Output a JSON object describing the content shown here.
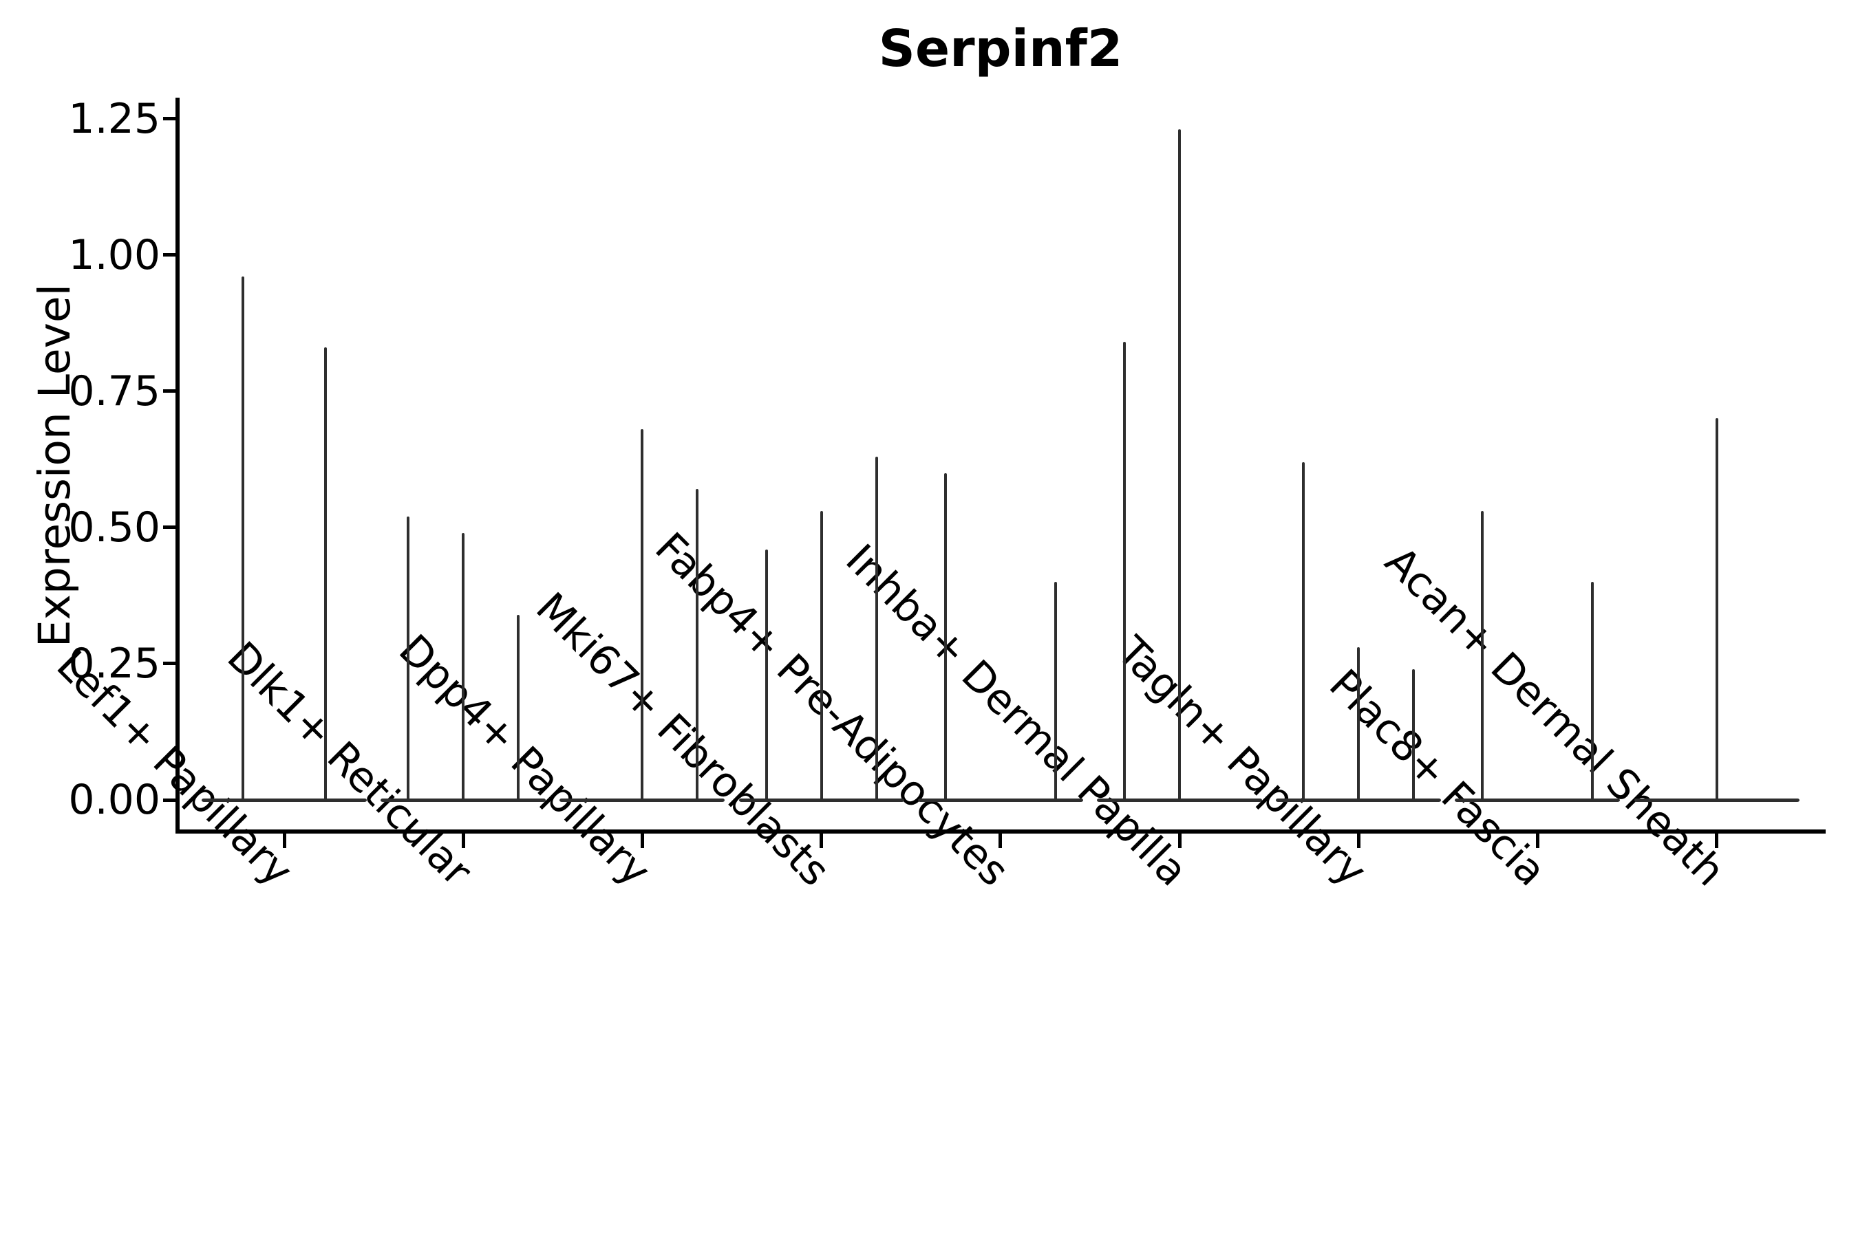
{
  "title": "Serpinf2",
  "ylabel": "Expression Level",
  "colors": {
    "violin": "#2e2e2e",
    "axis": "#000000",
    "text": "#000000",
    "background": "#ffffff"
  },
  "chart_data": {
    "type": "violin",
    "title": "Serpinf2",
    "ylabel": "Expression Level",
    "xlabel": "",
    "ylim": [
      -0.06,
      1.29
    ],
    "yticks": [
      0.0,
      0.25,
      0.5,
      0.75,
      1.0,
      1.25
    ],
    "ytick_labels": [
      "0.00",
      "0.25",
      "0.50",
      "0.75",
      "1.00",
      "1.25"
    ],
    "grid": false,
    "legend": false,
    "x_tick_rotation": 45,
    "categories": [
      "Lef1+ Papillary",
      "Dlk1+ Reticular",
      "Dpp4+ Papillary",
      "Mki67+ Fibroblasts",
      "Fabp4+ Pre-Adipocytes",
      "Inhba+ Dermal Papilla",
      "Tagln+ Papillary",
      "Plac8+ Fascia",
      "Acan+ Dermal Sheath"
    ],
    "groups": [
      {
        "category": "Lef1+ Papillary",
        "violins": 2,
        "spikes": [
          {
            "slot": 0,
            "peak": 0.96
          },
          {
            "slot": 1,
            "peak": 0.83
          }
        ]
      },
      {
        "category": "Dlk1+ Reticular",
        "violins": 3,
        "spikes": [
          {
            "slot": 0,
            "peak": 0.52
          },
          {
            "slot": 1,
            "peak": 0.49
          },
          {
            "slot": 2,
            "peak": 0.34
          }
        ]
      },
      {
        "category": "Dpp4+ Papillary",
        "violins": 3,
        "spikes": [
          {
            "slot": 1,
            "peak": 0.68
          },
          {
            "slot": 2,
            "peak": 0.57
          }
        ]
      },
      {
        "category": "Mki67+ Fibroblasts",
        "violins": 3,
        "spikes": [
          {
            "slot": 0,
            "peak": 0.46
          },
          {
            "slot": 1,
            "peak": 0.53
          },
          {
            "slot": 2,
            "peak": 0.63
          }
        ]
      },
      {
        "category": "Fabp4+ Pre-Adipocytes",
        "violins": 3,
        "spikes": [
          {
            "slot": 0,
            "peak": 0.6
          },
          {
            "slot": 2,
            "peak": 0.4
          }
        ]
      },
      {
        "category": "Inhba+ Dermal Papilla",
        "violins": 3,
        "spikes": [
          {
            "slot": 0,
            "peak": 0.84
          },
          {
            "slot": 1,
            "peak": 1.23
          }
        ]
      },
      {
        "category": "Tagln+ Papillary",
        "violins": 3,
        "spikes": [
          {
            "slot": 0,
            "peak": 0.62
          },
          {
            "slot": 1,
            "peak": 0.28
          },
          {
            "slot": 2,
            "peak": 0.24
          }
        ]
      },
      {
        "category": "Plac8+ Fascia",
        "violins": 3,
        "spikes": [
          {
            "slot": 0,
            "peak": 0.53
          },
          {
            "slot": 2,
            "peak": 0.4
          }
        ]
      },
      {
        "category": "Acan+ Dermal Sheath",
        "violins": 3,
        "spikes": [
          {
            "slot": 1,
            "peak": 0.7
          }
        ]
      }
    ]
  }
}
